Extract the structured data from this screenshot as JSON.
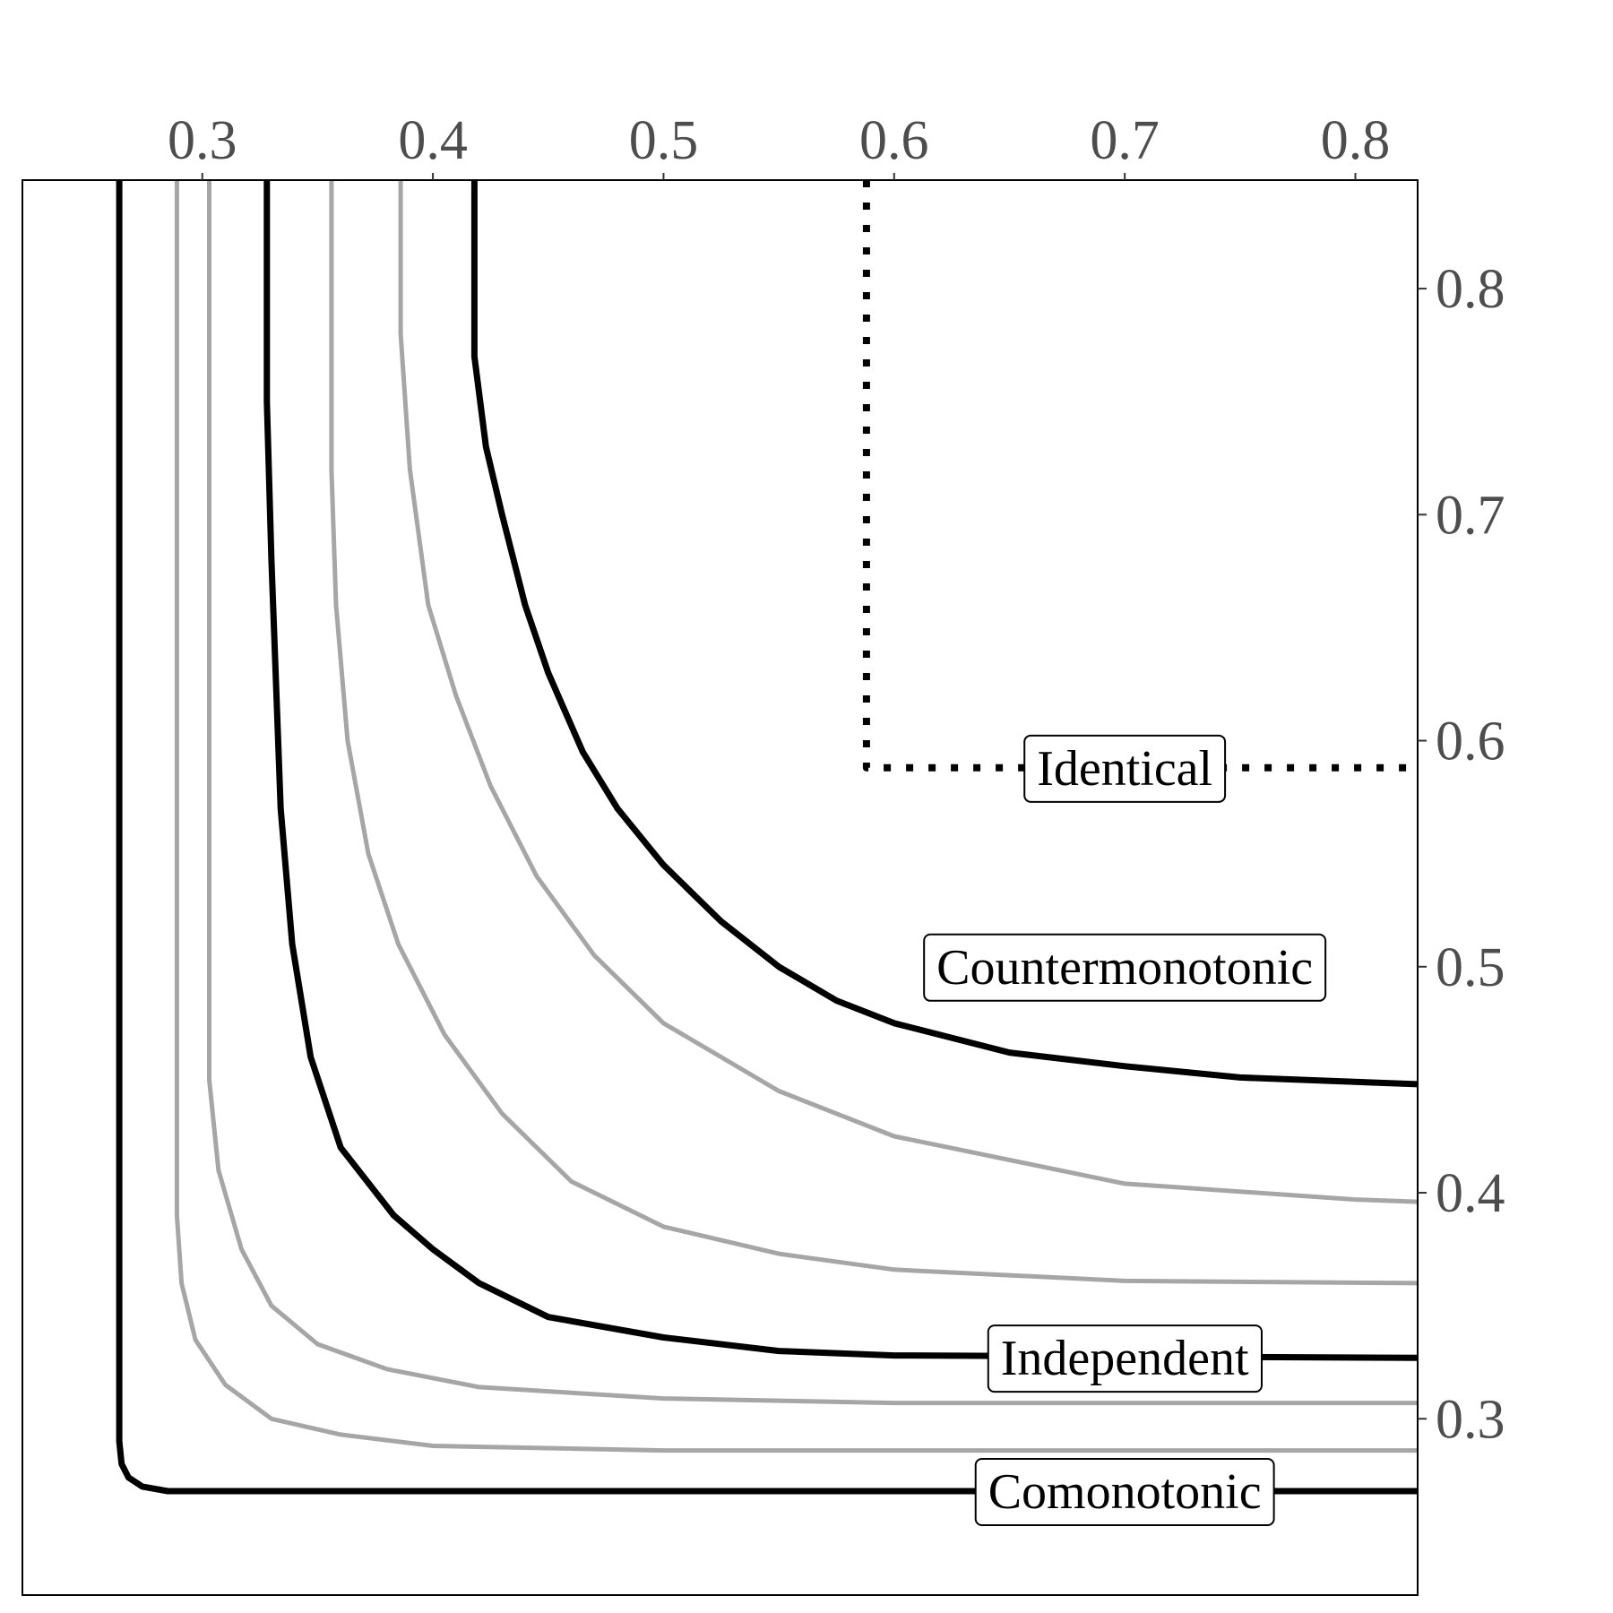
{
  "chart_data": {
    "type": "line",
    "title": "",
    "xlabel": "",
    "ylabel": "",
    "xlim": [
      0.222,
      0.827
    ],
    "ylim": [
      0.222,
      0.848
    ],
    "x_ticks": [
      0.3,
      0.4,
      0.5,
      0.6,
      0.7,
      0.8
    ],
    "y_ticks": [
      0.3,
      0.4,
      0.5,
      0.6,
      0.7,
      0.8
    ],
    "x_tick_labels": [
      "0.3",
      "0.4",
      "0.5",
      "0.6",
      "0.7",
      "0.8"
    ],
    "y_tick_labels": [
      "0.3",
      "0.4",
      "0.5",
      "0.6",
      "0.7",
      "0.8"
    ],
    "x_axis_position": "top",
    "y_axis_position": "right",
    "grid": false,
    "series": [
      {
        "name": "Comonotonic",
        "color": "#000000",
        "style": "solid",
        "labeled": true,
        "points": [
          [
            0.264,
            0.848
          ],
          [
            0.264,
            0.29
          ],
          [
            0.265,
            0.28
          ],
          [
            0.268,
            0.274
          ],
          [
            0.274,
            0.27
          ],
          [
            0.285,
            0.268
          ],
          [
            0.33,
            0.268
          ],
          [
            0.827,
            0.268
          ]
        ]
      },
      {
        "name": "",
        "color": "#a6a6a6",
        "style": "solid",
        "labeled": false,
        "points": [
          [
            0.289,
            0.848
          ],
          [
            0.289,
            0.39
          ],
          [
            0.291,
            0.36
          ],
          [
            0.297,
            0.335
          ],
          [
            0.31,
            0.315
          ],
          [
            0.33,
            0.3
          ],
          [
            0.36,
            0.293
          ],
          [
            0.4,
            0.288
          ],
          [
            0.5,
            0.286
          ],
          [
            0.827,
            0.286
          ]
        ]
      },
      {
        "name": "",
        "color": "#a6a6a6",
        "style": "solid",
        "labeled": false,
        "points": [
          [
            0.303,
            0.848
          ],
          [
            0.303,
            0.45
          ],
          [
            0.307,
            0.41
          ],
          [
            0.317,
            0.375
          ],
          [
            0.33,
            0.35
          ],
          [
            0.35,
            0.333
          ],
          [
            0.38,
            0.322
          ],
          [
            0.42,
            0.314
          ],
          [
            0.5,
            0.309
          ],
          [
            0.6,
            0.307
          ],
          [
            0.827,
            0.307
          ]
        ]
      },
      {
        "name": "Independent",
        "color": "#000000",
        "style": "solid",
        "labeled": true,
        "points": [
          [
            0.328,
            0.848
          ],
          [
            0.328,
            0.75
          ],
          [
            0.33,
            0.68
          ],
          [
            0.334,
            0.57
          ],
          [
            0.339,
            0.51
          ],
          [
            0.347,
            0.46
          ],
          [
            0.36,
            0.42
          ],
          [
            0.383,
            0.39
          ],
          [
            0.4,
            0.375
          ],
          [
            0.42,
            0.36
          ],
          [
            0.45,
            0.345
          ],
          [
            0.5,
            0.336
          ],
          [
            0.55,
            0.33
          ],
          [
            0.6,
            0.328
          ],
          [
            0.827,
            0.327
          ]
        ]
      },
      {
        "name": "",
        "color": "#a6a6a6",
        "style": "solid",
        "labeled": false,
        "points": [
          [
            0.356,
            0.848
          ],
          [
            0.356,
            0.72
          ],
          [
            0.358,
            0.66
          ],
          [
            0.363,
            0.6
          ],
          [
            0.372,
            0.55
          ],
          [
            0.385,
            0.51
          ],
          [
            0.405,
            0.47
          ],
          [
            0.43,
            0.435
          ],
          [
            0.46,
            0.405
          ],
          [
            0.5,
            0.385
          ],
          [
            0.55,
            0.373
          ],
          [
            0.6,
            0.366
          ],
          [
            0.7,
            0.361
          ],
          [
            0.827,
            0.36
          ]
        ]
      },
      {
        "name": "",
        "color": "#a6a6a6",
        "style": "solid",
        "labeled": false,
        "points": [
          [
            0.386,
            0.848
          ],
          [
            0.386,
            0.78
          ],
          [
            0.39,
            0.72
          ],
          [
            0.398,
            0.66
          ],
          [
            0.41,
            0.62
          ],
          [
            0.425,
            0.58
          ],
          [
            0.445,
            0.54
          ],
          [
            0.47,
            0.505
          ],
          [
            0.5,
            0.475
          ],
          [
            0.55,
            0.445
          ],
          [
            0.6,
            0.425
          ],
          [
            0.7,
            0.404
          ],
          [
            0.8,
            0.397
          ],
          [
            0.827,
            0.396
          ]
        ]
      },
      {
        "name": "Countermonotonic",
        "color": "#000000",
        "style": "solid",
        "labeled": true,
        "points": [
          [
            0.418,
            0.848
          ],
          [
            0.418,
            0.77
          ],
          [
            0.423,
            0.73
          ],
          [
            0.43,
            0.7
          ],
          [
            0.44,
            0.66
          ],
          [
            0.45,
            0.63
          ],
          [
            0.465,
            0.595
          ],
          [
            0.48,
            0.57
          ],
          [
            0.5,
            0.545
          ],
          [
            0.525,
            0.52
          ],
          [
            0.55,
            0.5
          ],
          [
            0.575,
            0.485
          ],
          [
            0.6,
            0.475
          ],
          [
            0.65,
            0.462
          ],
          [
            0.7,
            0.456
          ],
          [
            0.75,
            0.451
          ],
          [
            0.827,
            0.448
          ]
        ]
      },
      {
        "name": "Identical",
        "color": "#000000",
        "style": "dotted",
        "labeled": true,
        "points": [
          [
            0.588,
            0.848
          ],
          [
            0.588,
            0.588
          ],
          [
            0.827,
            0.588
          ]
        ]
      }
    ],
    "labels": [
      {
        "text": "Identical",
        "x": 0.7,
        "y": 0.588
      },
      {
        "text": "Countermonotonic",
        "x": 0.7,
        "y": 0.5
      },
      {
        "text": "Independent",
        "x": 0.7,
        "y": 0.327
      },
      {
        "text": "Comonotonic",
        "x": 0.7,
        "y": 0.268
      }
    ]
  }
}
